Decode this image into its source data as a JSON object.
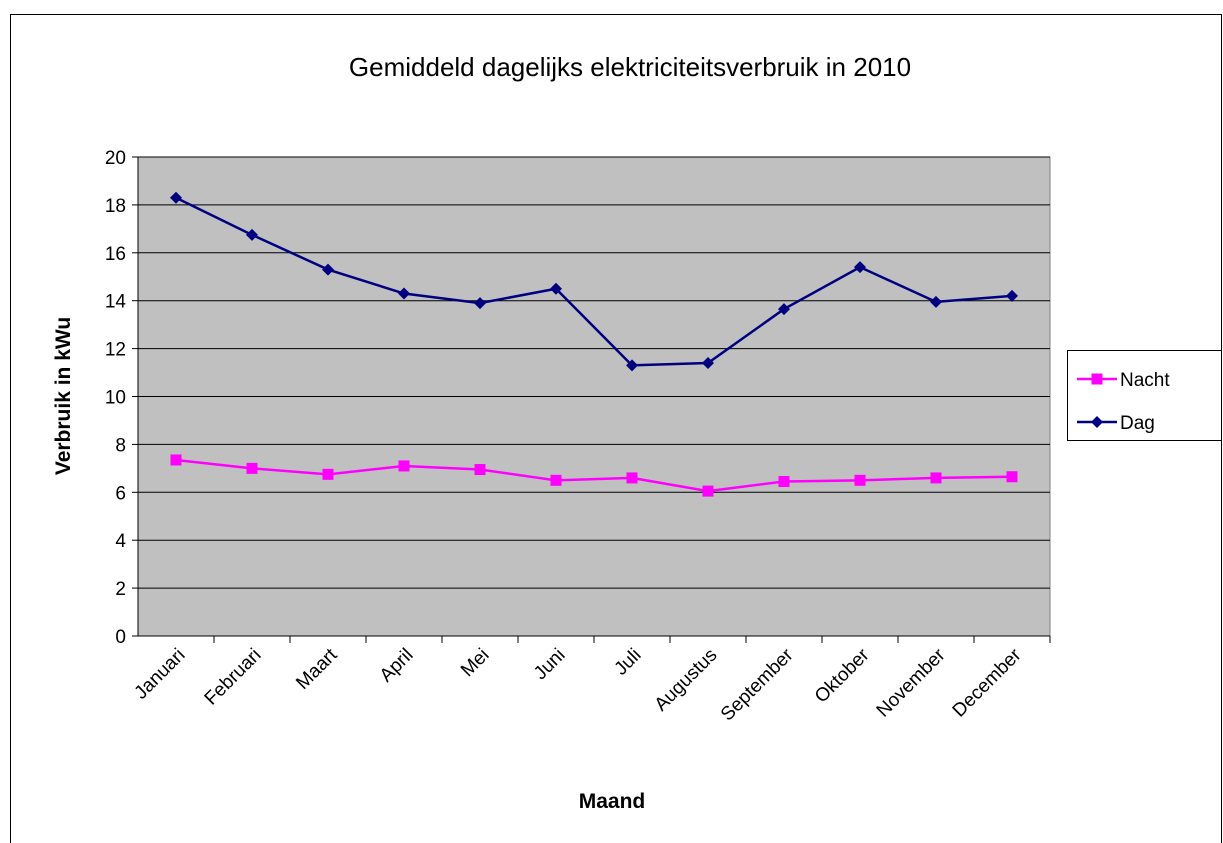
{
  "chart_data": {
    "type": "line",
    "title": "Gemiddeld dagelijks elektriciteitsverbruik in 2010",
    "x_label": "Maand",
    "y_label": "Verbruik in kWu",
    "categories": [
      "Januari",
      "Februari",
      "Maart",
      "April",
      "Mei",
      "Juni",
      "Juli",
      "Augustus",
      "September",
      "Oktober",
      "November",
      "December"
    ],
    "series": [
      {
        "name": "Nacht",
        "color": "#ff00ff",
        "marker": "square",
        "values": [
          7.35,
          7.0,
          6.75,
          7.1,
          6.95,
          6.5,
          6.6,
          6.05,
          6.45,
          6.5,
          6.6,
          6.65
        ]
      },
      {
        "name": "Dag",
        "color": "#000080",
        "marker": "diamond",
        "values": [
          18.3,
          16.75,
          15.3,
          14.3,
          13.9,
          14.5,
          11.3,
          11.4,
          13.65,
          15.4,
          13.95,
          14.2
        ]
      }
    ],
    "ylim": [
      0,
      20
    ],
    "yticks": [
      0,
      2,
      4,
      6,
      8,
      10,
      12,
      14,
      16,
      18,
      20
    ],
    "grid": true,
    "legend": "right",
    "plot_background": "#c0c0c0"
  }
}
